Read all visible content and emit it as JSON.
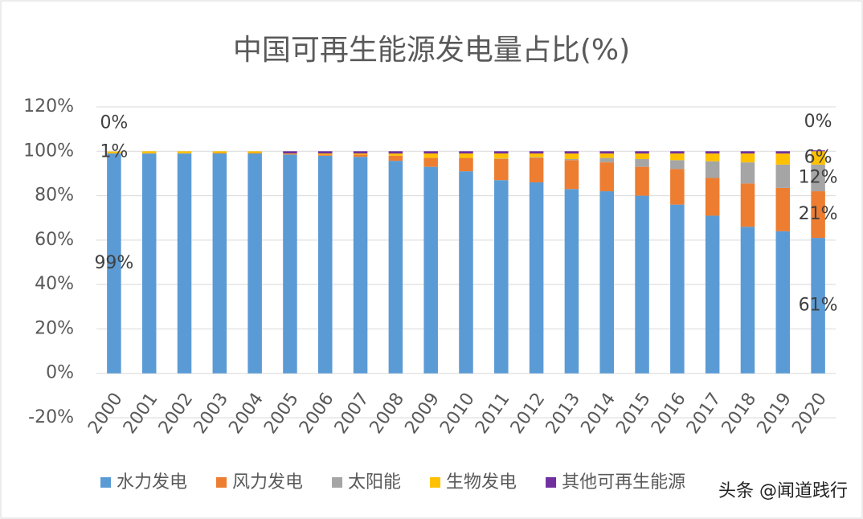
{
  "chart_data": {
    "type": "stacked_bar",
    "title": "中国可再生能源发电量占比(%)",
    "categories": [
      "2000",
      "2001",
      "2002",
      "2003",
      "2004",
      "2005",
      "2006",
      "2007",
      "2008",
      "2009",
      "2010",
      "2011",
      "2012",
      "2013",
      "2014",
      "2015",
      "2016",
      "2017",
      "2018",
      "2019",
      "2020"
    ],
    "series": [
      {
        "name": "水力发电",
        "color": "#5b9bd5",
        "values": [
          99,
          99,
          99,
          99,
          99,
          98.5,
          98,
          97.5,
          95.7,
          93,
          91,
          87,
          86,
          83,
          82,
          80,
          76,
          71,
          66,
          64,
          61
        ],
        "value_labels": [
          "99%",
          null,
          null,
          null,
          null,
          null,
          null,
          null,
          null,
          null,
          null,
          null,
          null,
          null,
          null,
          null,
          null,
          null,
          null,
          null,
          "61%"
        ]
      },
      {
        "name": "风力发电",
        "color": "#ed7d31",
        "values": [
          0.1,
          0.1,
          0.1,
          0.2,
          0.2,
          0.3,
          0.5,
          1,
          2.3,
          4,
          6,
          9.5,
          11,
          13,
          13,
          13,
          16,
          17,
          19.5,
          19.5,
          21
        ],
        "value_labels": [
          null,
          null,
          null,
          null,
          null,
          null,
          null,
          null,
          null,
          null,
          null,
          null,
          null,
          null,
          null,
          null,
          null,
          null,
          null,
          null,
          "21%"
        ]
      },
      {
        "name": "太阳能",
        "color": "#a5a5a5",
        "values": [
          0,
          0,
          0,
          0,
          0,
          0,
          0,
          0,
          0,
          0,
          0,
          0.2,
          0.3,
          0.5,
          2,
          3.5,
          4,
          7.5,
          9.5,
          10.5,
          12
        ],
        "value_labels": [
          null,
          null,
          null,
          null,
          null,
          null,
          null,
          null,
          null,
          null,
          null,
          null,
          null,
          null,
          null,
          null,
          null,
          null,
          null,
          null,
          "12%"
        ]
      },
      {
        "name": "生物发电",
        "color": "#ffc000",
        "values": [
          0.8,
          0.9,
          0.9,
          0.8,
          0.8,
          0.2,
          0.5,
          0.5,
          1,
          2,
          2,
          2.3,
          1.7,
          2.5,
          2,
          2.5,
          3,
          3.5,
          4,
          5,
          6
        ],
        "value_labels": [
          "1%",
          null,
          null,
          null,
          null,
          null,
          null,
          null,
          null,
          null,
          null,
          null,
          null,
          null,
          null,
          null,
          null,
          null,
          null,
          null,
          "6%"
        ]
      },
      {
        "name": "其他可再生能源",
        "color": "#7030a0",
        "values": [
          0,
          0,
          0,
          0,
          0,
          1,
          1,
          1,
          1,
          1,
          1,
          1,
          1,
          1,
          1,
          1,
          1,
          1,
          1,
          1,
          0.4
        ],
        "value_labels": [
          "0%",
          null,
          null,
          null,
          null,
          null,
          null,
          null,
          null,
          null,
          null,
          null,
          null,
          null,
          null,
          null,
          null,
          null,
          null,
          null,
          "0%"
        ]
      }
    ],
    "ylim": [
      -20,
      120
    ],
    "yticks": [
      {
        "value": -20,
        "label": "-20%"
      },
      {
        "value": 0,
        "label": "0%"
      },
      {
        "value": 20,
        "label": "20%"
      },
      {
        "value": 40,
        "label": "40%"
      },
      {
        "value": 60,
        "label": "60%"
      },
      {
        "value": 80,
        "label": "80%"
      },
      {
        "value": 100,
        "label": "100%"
      },
      {
        "value": 120,
        "label": "120%"
      }
    ],
    "grid": true,
    "legend": "bottom",
    "watermark": "头条 @闻道践行"
  }
}
